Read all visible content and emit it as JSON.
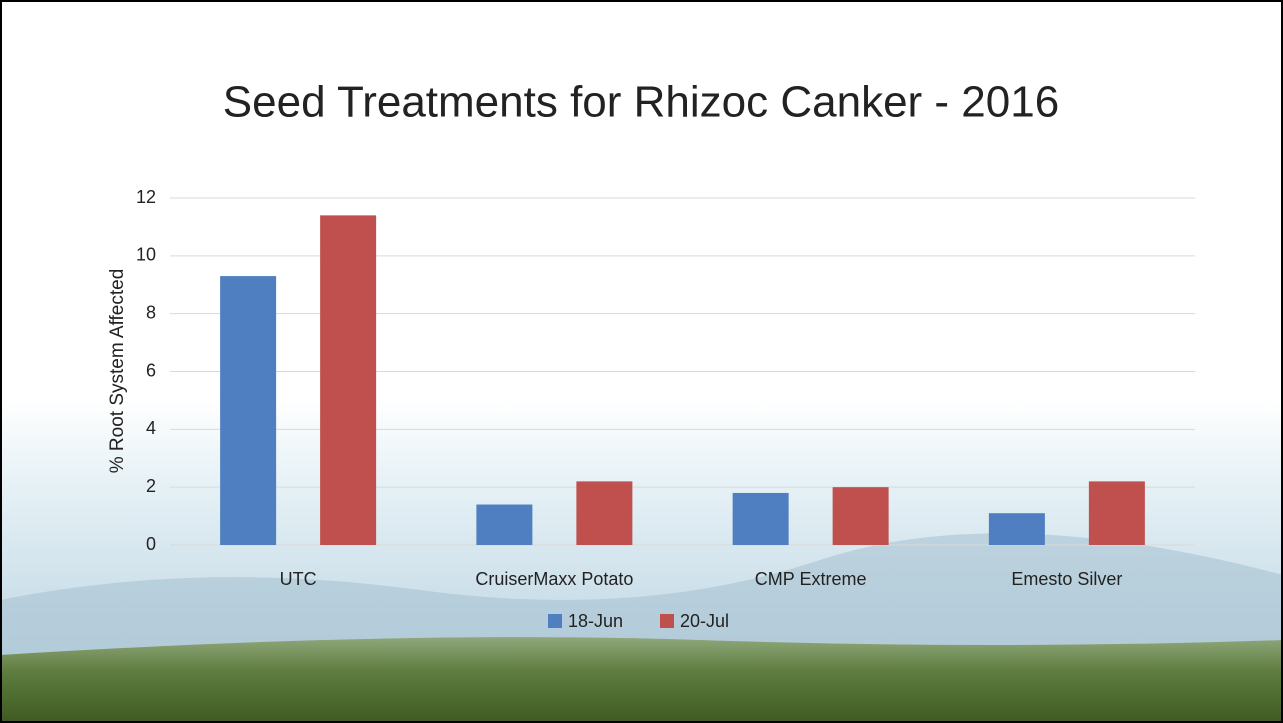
{
  "chart_data": {
    "type": "bar",
    "title": "Seed Treatments for Rhizoc Canker - 2016",
    "y_label": "% Root System Affected",
    "categories": [
      "UTC",
      "CruiserMaxx Potato",
      "CMP Extreme",
      "Emesto Silver"
    ],
    "series": [
      {
        "name": "18-Jun",
        "color": "#4f7fc0",
        "values": [
          9.3,
          1.4,
          1.8,
          1.1
        ]
      },
      {
        "name": "20-Jul",
        "color": "#c0504d",
        "values": [
          11.4,
          2.2,
          2.0,
          2.2
        ]
      }
    ],
    "ylim": [
      0,
      12
    ],
    "yticks": [
      0,
      2,
      4,
      6,
      8,
      10,
      12
    ],
    "grid": true,
    "legend": "bottom"
  }
}
